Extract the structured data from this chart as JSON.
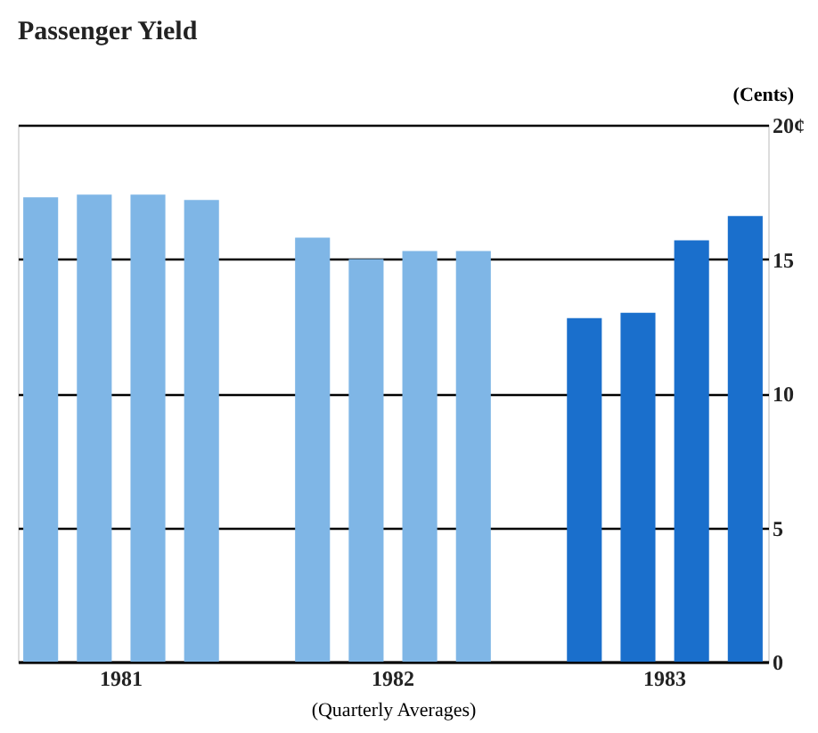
{
  "chart_data": {
    "type": "bar",
    "title": "Passenger Yield",
    "xlabel": "(Quarterly Averages)",
    "ylabel": "(Cents)",
    "categories": [
      "1981",
      "1982",
      "1983"
    ],
    "series": [
      {
        "colors": [
          "#7fb6e6",
          "#7fb6e6",
          "#1a6fcc"
        ],
        "values": [
          17.3,
          15.8,
          12.8
        ]
      },
      {
        "colors": [
          "#7fb6e6",
          "#7fb6e6",
          "#1a6fcc"
        ],
        "values": [
          17.4,
          15.0,
          13.0
        ]
      },
      {
        "colors": [
          "#7fb6e6",
          "#7fb6e6",
          "#1a6fcc"
        ],
        "values": [
          17.4,
          15.3,
          15.7
        ]
      },
      {
        "colors": [
          "#7fb6e6",
          "#7fb6e6",
          "#1a6fcc"
        ],
        "values": [
          17.2,
          15.3,
          16.6
        ]
      }
    ],
    "ylim": [
      0,
      20
    ],
    "yticks": [
      0,
      5,
      10,
      15,
      {
        "value": 20,
        "label": "20¢"
      }
    ],
    "grid": "y"
  }
}
